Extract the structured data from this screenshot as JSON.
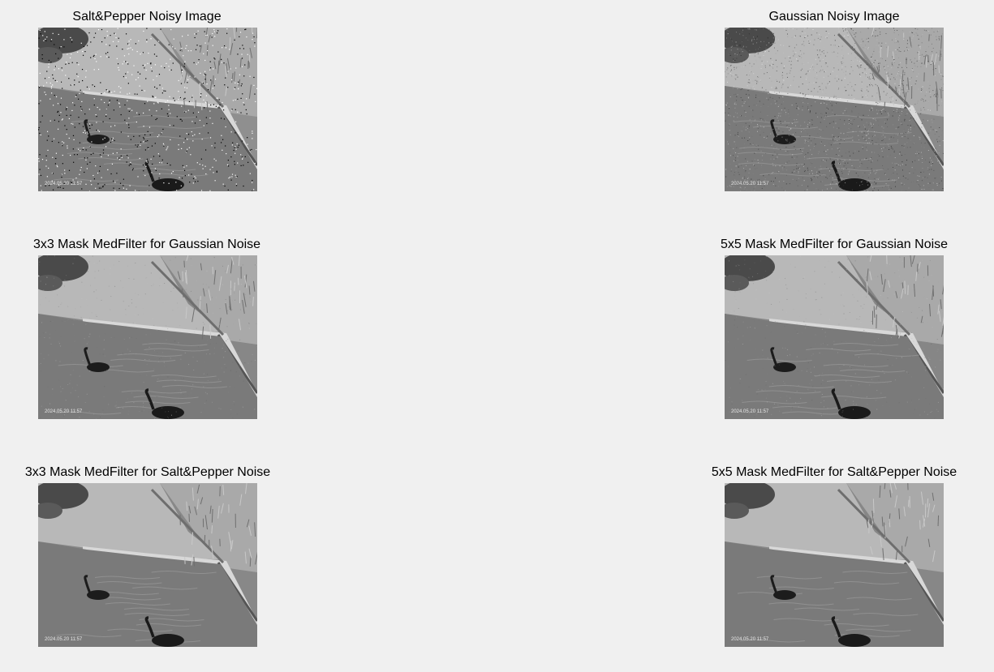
{
  "figure": {
    "panels": [
      {
        "id": "p1",
        "title": "Salt&Pepper Noisy Image",
        "variant": "saltpepper",
        "stamp_text": "2024.05.20 11:57",
        "theme": {
          "base": "#8f8f8f"
        }
      },
      {
        "id": "p2",
        "title": "Gaussian Noisy Image",
        "variant": "gaussian",
        "stamp_text": "2024.05.20 11:57",
        "theme": {
          "base": "#8a8a8a"
        }
      },
      {
        "id": "p3",
        "title": "3x3 Mask MedFilter for Gaussian Noise",
        "variant": "median3x3-gaussian",
        "stamp_text": "2024.05.20 11:57",
        "theme": {
          "base": "#878787"
        }
      },
      {
        "id": "p4",
        "title": "5x5 Mask MedFilter for Gaussian Noise",
        "variant": "median5x5-gaussian",
        "stamp_text": "2024.05.20 11:57",
        "theme": {
          "base": "#868686"
        }
      },
      {
        "id": "p5",
        "title": "3x3 Mask MedFilter for Salt&Pepper Noise",
        "variant": "median3x3-saltpepper",
        "stamp_text": "2024.05.20 11:57",
        "theme": {
          "base": "#888888"
        }
      },
      {
        "id": "p6",
        "title": "5x5 Mask MedFilter for Salt&Pepper Noise",
        "variant": "median5x5-saltpepper",
        "stamp_text": "2024.05.20 11:57",
        "theme": {
          "base": "#878787"
        }
      }
    ]
  }
}
